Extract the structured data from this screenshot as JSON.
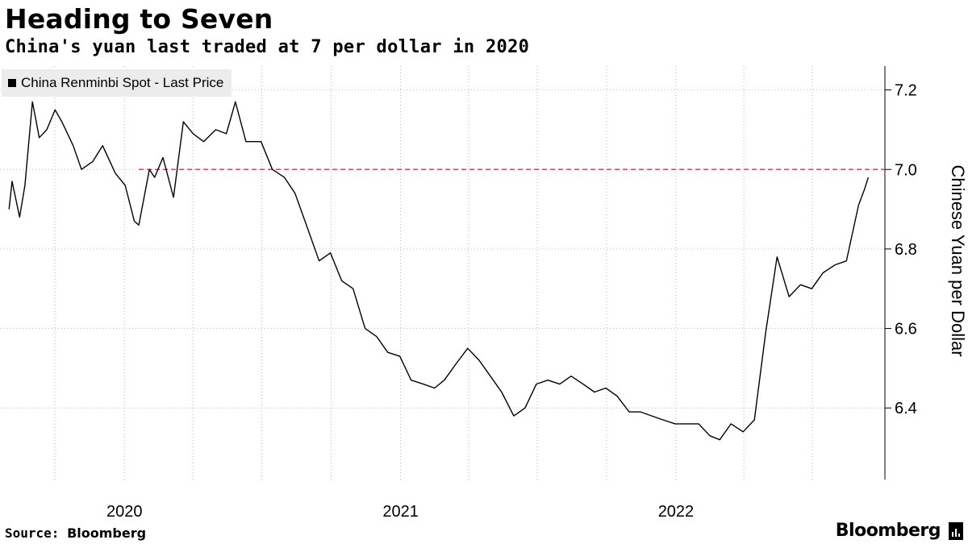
{
  "header": {
    "title": "Heading to Seven",
    "subtitle": "China's yuan last traded at 7 per dollar in 2020"
  },
  "footer": {
    "source_label": "Source:",
    "source_value": "Bloomberg",
    "brand": "Bloomberg",
    "brand_icon": "bloomberg-terminal-icon"
  },
  "chart_data": {
    "type": "line",
    "title": "Heading to Seven",
    "subtitle": "China's yuan last traded at 7 per dollar in 2020",
    "series": [
      {
        "name": "China Renminbi Spot - Last Price",
        "color": "#000000",
        "points": [
          [
            "2019-08-01",
            6.9
          ],
          [
            "2019-08-05",
            6.97
          ],
          [
            "2019-08-15",
            6.88
          ],
          [
            "2019-08-22",
            6.96
          ],
          [
            "2019-09-01",
            7.17
          ],
          [
            "2019-09-05",
            7.13
          ],
          [
            "2019-09-10",
            7.08
          ],
          [
            "2019-09-20",
            7.1
          ],
          [
            "2019-10-01",
            7.15
          ],
          [
            "2019-10-10",
            7.12
          ],
          [
            "2019-10-25",
            7.06
          ],
          [
            "2019-11-05",
            7.0
          ],
          [
            "2019-11-20",
            7.02
          ],
          [
            "2019-12-03",
            7.06
          ],
          [
            "2019-12-20",
            6.99
          ],
          [
            "2020-01-02",
            6.96
          ],
          [
            "2020-01-14",
            6.87
          ],
          [
            "2020-01-20",
            6.86
          ],
          [
            "2020-02-03",
            7.0
          ],
          [
            "2020-02-10",
            6.98
          ],
          [
            "2020-02-21",
            7.03
          ],
          [
            "2020-03-06",
            6.93
          ],
          [
            "2020-03-19",
            7.12
          ],
          [
            "2020-04-01",
            7.09
          ],
          [
            "2020-04-15",
            7.07
          ],
          [
            "2020-05-01",
            7.1
          ],
          [
            "2020-05-15",
            7.09
          ],
          [
            "2020-05-27",
            7.17
          ],
          [
            "2020-06-10",
            7.07
          ],
          [
            "2020-06-30",
            7.07
          ],
          [
            "2020-07-15",
            7.0
          ],
          [
            "2020-07-31",
            6.98
          ],
          [
            "2020-08-14",
            6.94
          ],
          [
            "2020-08-31",
            6.85
          ],
          [
            "2020-09-15",
            6.77
          ],
          [
            "2020-09-30",
            6.79
          ],
          [
            "2020-10-15",
            6.72
          ],
          [
            "2020-10-30",
            6.7
          ],
          [
            "2020-11-15",
            6.6
          ],
          [
            "2020-11-30",
            6.58
          ],
          [
            "2020-12-15",
            6.54
          ],
          [
            "2020-12-31",
            6.53
          ],
          [
            "2021-01-15",
            6.47
          ],
          [
            "2021-01-31",
            6.46
          ],
          [
            "2021-02-15",
            6.45
          ],
          [
            "2021-02-28",
            6.47
          ],
          [
            "2021-03-15",
            6.51
          ],
          [
            "2021-03-31",
            6.55
          ],
          [
            "2021-04-15",
            6.52
          ],
          [
            "2021-04-30",
            6.48
          ],
          [
            "2021-05-15",
            6.44
          ],
          [
            "2021-05-31",
            6.38
          ],
          [
            "2021-06-15",
            6.4
          ],
          [
            "2021-06-30",
            6.46
          ],
          [
            "2021-07-15",
            6.47
          ],
          [
            "2021-07-31",
            6.46
          ],
          [
            "2021-08-15",
            6.48
          ],
          [
            "2021-08-31",
            6.46
          ],
          [
            "2021-09-15",
            6.44
          ],
          [
            "2021-09-30",
            6.45
          ],
          [
            "2021-10-15",
            6.43
          ],
          [
            "2021-10-31",
            6.39
          ],
          [
            "2021-11-15",
            6.39
          ],
          [
            "2021-11-30",
            6.38
          ],
          [
            "2021-12-15",
            6.37
          ],
          [
            "2021-12-31",
            6.36
          ],
          [
            "2022-01-15",
            6.36
          ],
          [
            "2022-01-31",
            6.36
          ],
          [
            "2022-02-15",
            6.33
          ],
          [
            "2022-02-28",
            6.32
          ],
          [
            "2022-03-15",
            6.36
          ],
          [
            "2022-03-31",
            6.34
          ],
          [
            "2022-04-15",
            6.37
          ],
          [
            "2022-04-30",
            6.59
          ],
          [
            "2022-05-15",
            6.78
          ],
          [
            "2022-05-31",
            6.68
          ],
          [
            "2022-06-15",
            6.71
          ],
          [
            "2022-06-30",
            6.7
          ],
          [
            "2022-07-15",
            6.74
          ],
          [
            "2022-07-31",
            6.76
          ],
          [
            "2022-08-15",
            6.77
          ],
          [
            "2022-08-31",
            6.91
          ],
          [
            "2022-09-08",
            6.95
          ],
          [
            "2022-09-13",
            6.98
          ]
        ]
      }
    ],
    "reference_line": {
      "y": 7.0,
      "style": "dashed",
      "color": "#ff3355"
    },
    "xaxis": {
      "type": "date",
      "range": [
        "2019-07-20",
        "2022-10-05"
      ],
      "ticks": [
        {
          "value": "2020-01-01",
          "label": "2020"
        },
        {
          "value": "2021-01-01",
          "label": "2021"
        },
        {
          "value": "2022-01-01",
          "label": "2022"
        }
      ],
      "gridlines": [
        "2019-10-01",
        "2020-01-01",
        "2020-04-01",
        "2020-07-01",
        "2020-10-01",
        "2021-01-01",
        "2021-04-01",
        "2021-07-01",
        "2021-10-01",
        "2022-01-01",
        "2022-04-01",
        "2022-07-01"
      ]
    },
    "yaxis": {
      "label": "Chinese Yuan per Dollar",
      "position": "right",
      "range": [
        6.22,
        7.26
      ],
      "ticks": [
        6.4,
        6.6,
        6.8,
        7.0,
        7.2
      ],
      "tick_labels": [
        "6.4",
        "6.6",
        "6.8",
        "7.0",
        "7.2"
      ]
    },
    "grid": true,
    "legend": {
      "position": "top-left"
    },
    "colors": {
      "axis": "#000000",
      "grid": "#bbbbbb",
      "legend_bg": "#ececec"
    }
  }
}
